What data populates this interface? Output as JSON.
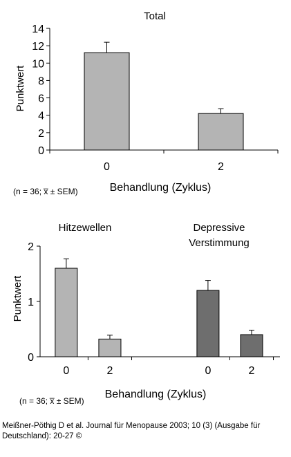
{
  "chart_data": [
    {
      "type": "bar",
      "title": "Total",
      "xlabel": "Behandlung (Zyklus)",
      "ylabel": "Punktwert",
      "ylim": [
        0,
        14
      ],
      "yticks": [
        "0",
        "2",
        "4",
        "6",
        "8",
        "10",
        "12",
        "14"
      ],
      "categories": [
        "0",
        "2"
      ],
      "values": [
        11.2,
        4.2
      ],
      "errors": [
        1.2,
        0.55
      ],
      "note": "(n = 36; x̅ ± SEM)",
      "bar_color": "#b4b4b4"
    },
    {
      "type": "bar",
      "xlabel": "Behandlung (Zyklus)",
      "ylabel": "Punktwert",
      "ylim": [
        0,
        2
      ],
      "yticks": [
        "0",
        "1",
        "2"
      ],
      "groups": [
        {
          "name_lines": [
            "Hitzewellen"
          ],
          "categories": [
            "0",
            "2"
          ],
          "values": [
            1.6,
            0.32
          ],
          "errors": [
            0.17,
            0.07
          ],
          "color": "#b4b4b4"
        },
        {
          "name_lines": [
            "Depressive",
            "Verstimmung"
          ],
          "categories": [
            "0",
            "2"
          ],
          "values": [
            1.2,
            0.4
          ],
          "errors": [
            0.18,
            0.08
          ],
          "color": "#6e6e6e"
        }
      ],
      "note": "(n = 36; x̅ ± SEM)"
    }
  ],
  "source": "Meißner-Pöthig D et al. Journal für Menopause 2003; 10 (3) (Ausgabe für Deutschland): 20-27 ©"
}
